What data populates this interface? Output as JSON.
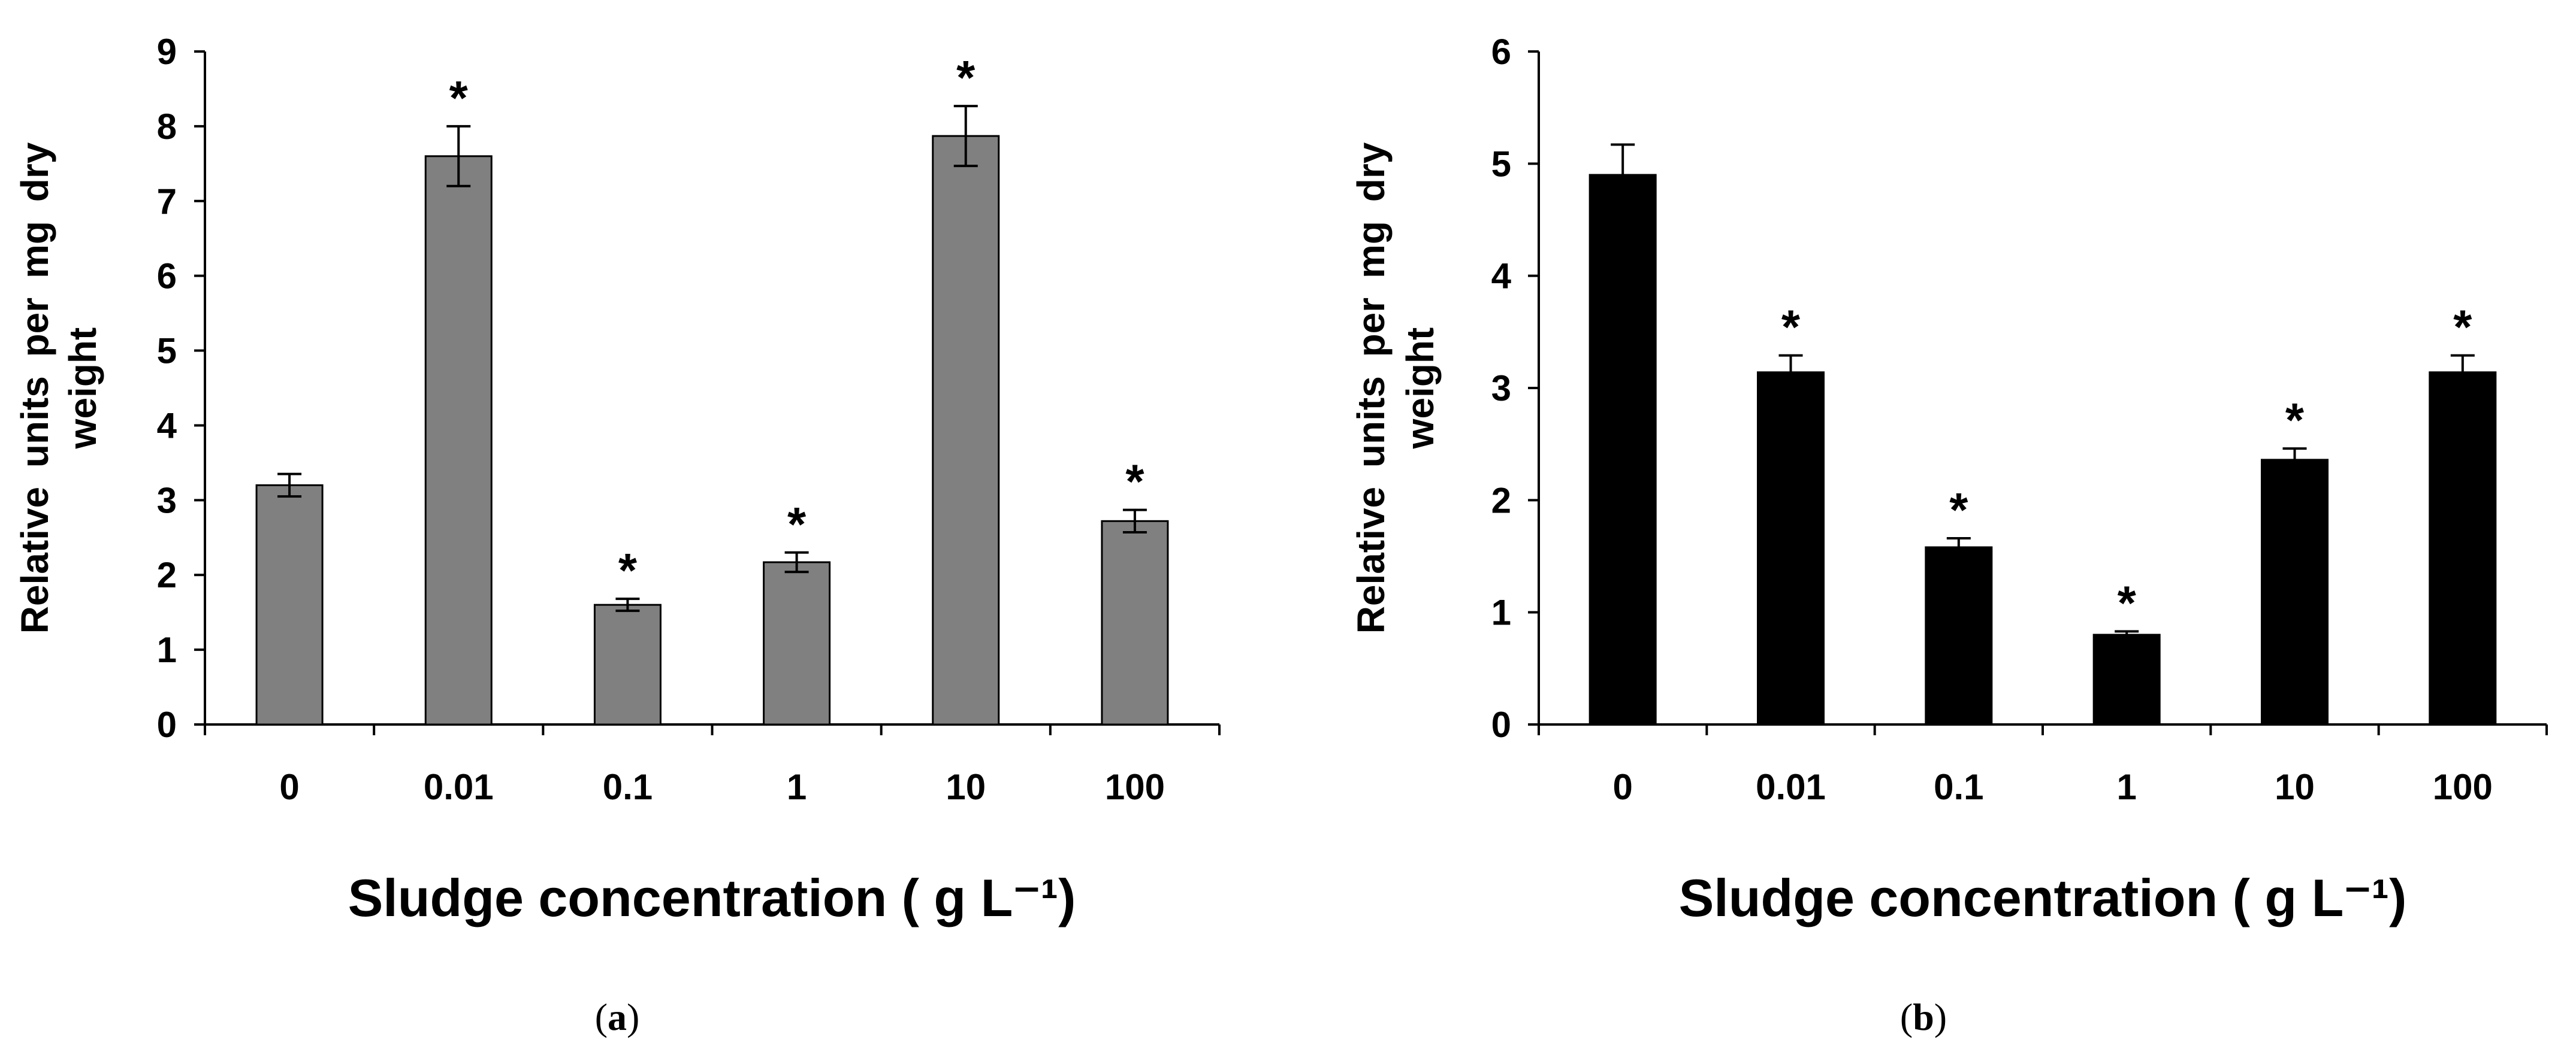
{
  "chart_data": [
    {
      "type": "bar",
      "panel_label": "a",
      "categories": [
        "0",
        "0.01",
        "0.1",
        "1",
        "10",
        "100"
      ],
      "values": [
        3.2,
        7.6,
        1.6,
        2.17,
        7.87,
        2.72
      ],
      "errors": [
        0.15,
        0.4,
        0.08,
        0.13,
        0.4,
        0.15
      ],
      "significant": [
        false,
        true,
        true,
        true,
        true,
        true
      ],
      "marker": "*",
      "bar_color": "#808080",
      "ylabel_line1": "Relative units per mg dry",
      "ylabel_line2": "weight",
      "xlabel": "Sludge concentration ( g L⁻¹)",
      "ylim": [
        0,
        9
      ],
      "yticks": [
        "0",
        "1",
        "2",
        "3",
        "4",
        "5",
        "6",
        "7",
        "8",
        "9"
      ],
      "grid": false
    },
    {
      "type": "bar",
      "panel_label": "b",
      "categories": [
        "0",
        "0.01",
        "0.1",
        "1",
        "10",
        "100"
      ],
      "values": [
        4.9,
        3.14,
        1.58,
        0.8,
        2.36,
        3.14
      ],
      "errors": [
        0.27,
        0.15,
        0.08,
        0.03,
        0.1,
        0.15
      ],
      "significant": [
        false,
        true,
        true,
        true,
        true,
        true
      ],
      "marker": "*",
      "bar_color": "#000000",
      "ylabel_line1": "Relative units per mg dry",
      "ylabel_line2": "weight",
      "xlabel": "Sludge concentration ( g L⁻¹)",
      "ylim": [
        0,
        6
      ],
      "yticks": [
        "0",
        "1",
        "2",
        "3",
        "4",
        "5",
        "6"
      ],
      "grid": false
    }
  ]
}
